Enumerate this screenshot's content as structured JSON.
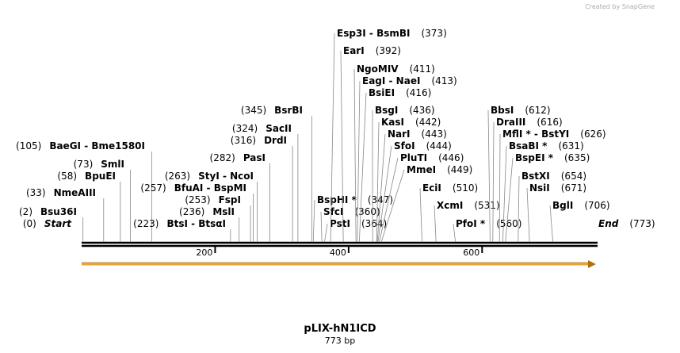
{
  "credit": "Created by SnapGene",
  "map": {
    "title": "pLIX-hN1ICD",
    "size": {
      "value": 773,
      "label": "773 bp"
    },
    "ticks": [
      200,
      400,
      600
    ],
    "sites": [
      {
        "name": "Start",
        "position": {
          "value": 0,
          "label": "(0)"
        }
      },
      {
        "name": "Bsu36I",
        "position": {
          "value": 2,
          "label": "(2)"
        }
      },
      {
        "name": "NmeAIII",
        "position": {
          "value": 33,
          "label": "(33)"
        }
      },
      {
        "name": "BpuEI",
        "position": {
          "value": 58,
          "label": "(58)"
        }
      },
      {
        "name": "SmlI",
        "position": {
          "value": 73,
          "label": "(73)"
        }
      },
      {
        "name": "BaeGI  - Bme1580I",
        "position": {
          "value": 105,
          "label": "(105)"
        }
      },
      {
        "name": "BtsI  - BtsαI",
        "position": {
          "value": 223,
          "label": "(223)"
        }
      },
      {
        "name": "MslI",
        "position": {
          "value": 236,
          "label": "(236)"
        }
      },
      {
        "name": "FspI",
        "position": {
          "value": 253,
          "label": "(253)"
        }
      },
      {
        "name": "BfuAI  - BspMI",
        "position": {
          "value": 257,
          "label": "(257)"
        }
      },
      {
        "name": "StyI  - NcoI",
        "position": {
          "value": 263,
          "label": "(263)"
        }
      },
      {
        "name": "PasI",
        "position": {
          "value": 282,
          "label": "(282)"
        }
      },
      {
        "name": "DrdI",
        "position": {
          "value": 316,
          "label": "(316)"
        }
      },
      {
        "name": "SacII",
        "position": {
          "value": 324,
          "label": "(324)"
        }
      },
      {
        "name": "BsrBI",
        "position": {
          "value": 345,
          "label": "(345)"
        }
      },
      {
        "name": "BspHI *",
        "position": {
          "value": 347,
          "label": "(347)"
        }
      },
      {
        "name": "SfcI",
        "position": {
          "value": 360,
          "label": "(360)"
        }
      },
      {
        "name": "PstI",
        "position": {
          "value": 364,
          "label": "(364)"
        }
      },
      {
        "name": "Esp3I  - BsmBI",
        "position": {
          "value": 373,
          "label": "(373)"
        }
      },
      {
        "name": "EarI",
        "position": {
          "value": 392,
          "label": "(392)"
        }
      },
      {
        "name": "NgoMIV",
        "position": {
          "value": 411,
          "label": "(411)"
        }
      },
      {
        "name": "EagI  - NaeI",
        "position": {
          "value": 413,
          "label": "(413)"
        }
      },
      {
        "name": "BsiEI",
        "position": {
          "value": 416,
          "label": "(416)"
        }
      },
      {
        "name": "BsgI",
        "position": {
          "value": 436,
          "label": "(436)"
        }
      },
      {
        "name": "KasI",
        "position": {
          "value": 442,
          "label": "(442)"
        }
      },
      {
        "name": "NarI",
        "position": {
          "value": 443,
          "label": "(443)"
        }
      },
      {
        "name": "SfoI",
        "position": {
          "value": 444,
          "label": "(444)"
        }
      },
      {
        "name": "PluTI",
        "position": {
          "value": 446,
          "label": "(446)"
        }
      },
      {
        "name": "MmeI",
        "position": {
          "value": 449,
          "label": "(449)"
        }
      },
      {
        "name": "EciI",
        "position": {
          "value": 510,
          "label": "(510)"
        }
      },
      {
        "name": "XcmI",
        "position": {
          "value": 531,
          "label": "(531)"
        }
      },
      {
        "name": "PfoI *",
        "position": {
          "value": 560,
          "label": "(560)"
        }
      },
      {
        "name": "BbsI",
        "position": {
          "value": 612,
          "label": "(612)"
        }
      },
      {
        "name": "DraIII",
        "position": {
          "value": 616,
          "label": "(616)"
        }
      },
      {
        "name": "MflI *  - BstYI",
        "position": {
          "value": 626,
          "label": "(626)"
        }
      },
      {
        "name": "BsaBI *",
        "position": {
          "value": 631,
          "label": "(631)"
        }
      },
      {
        "name": "BspEI *",
        "position": {
          "value": 635,
          "label": "(635)"
        }
      },
      {
        "name": "BstXI",
        "position": {
          "value": 654,
          "label": "(654)"
        }
      },
      {
        "name": "NsiI",
        "position": {
          "value": 671,
          "label": "(671)"
        }
      },
      {
        "name": "BglI",
        "position": {
          "value": 706,
          "label": "(706)"
        }
      },
      {
        "name": "End",
        "position": {
          "value": 773,
          "label": "(773)"
        }
      }
    ]
  }
}
